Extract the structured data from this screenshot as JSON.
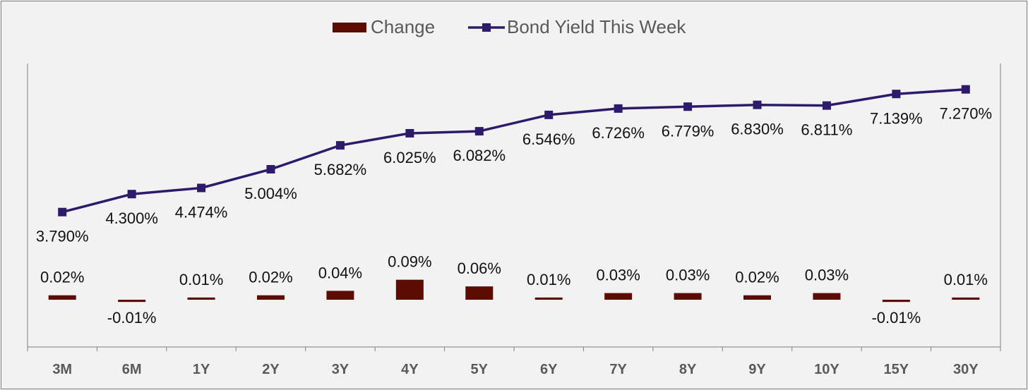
{
  "chart_data": {
    "type": "bar-line-combo",
    "categories": [
      "3M",
      "6M",
      "1Y",
      "2Y",
      "3Y",
      "4Y",
      "5Y",
      "6Y",
      "7Y",
      "8Y",
      "9Y",
      "10Y",
      "15Y",
      "30Y"
    ],
    "series": [
      {
        "name": "Change",
        "type": "bar",
        "axis": "secondary",
        "color": "#5c0c00",
        "values": [
          0.02,
          -0.01,
          0.01,
          0.02,
          0.04,
          0.09,
          0.06,
          0.01,
          0.03,
          0.03,
          0.02,
          0.03,
          -0.01,
          0.01
        ],
        "labels": [
          "0.02%",
          "-0.01%",
          "0.01%",
          "0.02%",
          "0.04%",
          "0.09%",
          "0.06%",
          "0.01%",
          "0.03%",
          "0.03%",
          "0.02%",
          "0.03%",
          "-0.01%",
          "0.01%"
        ]
      },
      {
        "name": "Bond Yield This Week",
        "type": "line",
        "axis": "primary",
        "color": "#2e1a6b",
        "marker": "square",
        "values": [
          3.79,
          4.3,
          4.474,
          5.004,
          5.682,
          6.025,
          6.082,
          6.546,
          6.726,
          6.779,
          6.83,
          6.811,
          7.139,
          7.27
        ],
        "labels": [
          "3.790%",
          "4.300%",
          "4.474%",
          "5.004%",
          "5.682%",
          "6.025%",
          "6.082%",
          "6.546%",
          "6.726%",
          "6.779%",
          "6.830%",
          "6.811%",
          "7.139%",
          "7.270%"
        ]
      }
    ],
    "legend": "top",
    "grid": false
  }
}
